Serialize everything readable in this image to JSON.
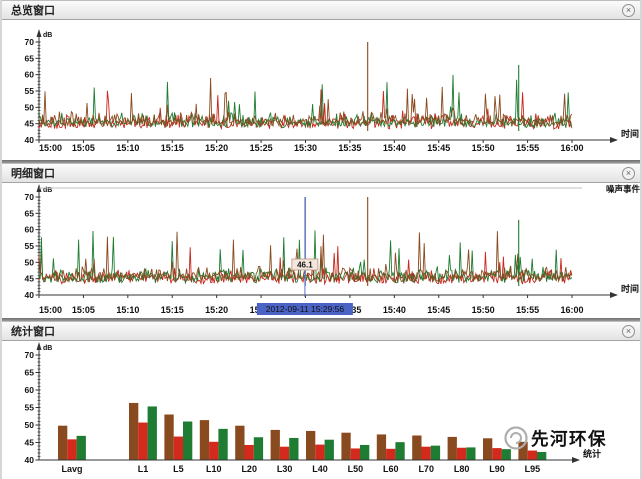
{
  "ui": {
    "close_glyph": "×",
    "watermark": {
      "text": "先河环保",
      "color": "#9b9b9b"
    },
    "accent_colors": {
      "series_red": "#c8281e",
      "series_green": "#1f7c31",
      "series_brown": "#8a4a1f",
      "cursor_blue": "#4a63c4"
    }
  },
  "panels": {
    "overview": {
      "title": "总览窗口"
    },
    "detail": {
      "title": "明细窗口"
    },
    "statistics": {
      "title": "统计窗口"
    }
  },
  "chart_data": [
    {
      "type": "line",
      "panel": "overview",
      "title": "总览窗口",
      "xlabel": "时间",
      "ylabel": "dB",
      "x_ticks": [
        "15:00",
        "15:05",
        "15:10",
        "15:15",
        "15:20",
        "15:25",
        "15:30",
        "15:35",
        "15:40",
        "15:45",
        "15:50",
        "15:55",
        "16:00"
      ],
      "ylim": [
        40,
        70
      ],
      "y_ticks": [
        70,
        65,
        60,
        55,
        50,
        45,
        40
      ],
      "grid": false,
      "legend": "none",
      "series": [
        {
          "name": "instant-red",
          "color": "#c8281e",
          "typical_range_db": [
            43,
            52
          ]
        },
        {
          "name": "instant-green",
          "color": "#1f7c31",
          "typical_range_db": [
            43,
            58
          ]
        },
        {
          "name": "instant-brown",
          "color": "#8a4a1f",
          "typical_range_db": [
            44,
            60
          ]
        }
      ],
      "notable_events": [
        {
          "series": "instant-brown",
          "time": "15:37",
          "peak_db": 70
        },
        {
          "series": "instant-green",
          "time": "15:54",
          "peak_db": 63
        }
      ]
    },
    {
      "type": "line",
      "panel": "detail",
      "title": "明细窗口",
      "xlabel": "时间",
      "ylabel": "dB",
      "event_track_label": "噪声事件",
      "x_ticks": [
        "15:00",
        "15:05",
        "15:10",
        "15:15",
        "15:20",
        "15:25",
        "15:30",
        "15:35",
        "15:40",
        "15:45",
        "15:50",
        "15:55",
        "16:00"
      ],
      "ylim": [
        40,
        70
      ],
      "y_ticks": [
        70,
        65,
        60,
        55,
        50,
        45,
        40
      ],
      "grid": false,
      "legend": "none",
      "series": [
        {
          "name": "instant-red",
          "color": "#c8281e",
          "typical_range_db": [
            43,
            52
          ]
        },
        {
          "name": "instant-green",
          "color": "#1f7c31",
          "typical_range_db": [
            43,
            58
          ]
        },
        {
          "name": "instant-brown",
          "color": "#8a4a1f",
          "typical_range_db": [
            44,
            60
          ]
        }
      ],
      "notable_events": [
        {
          "series": "cursor-gray",
          "time": "15:30",
          "peak_db": 70
        },
        {
          "series": "instant-brown",
          "time": "15:37",
          "peak_db": 70
        },
        {
          "series": "instant-green",
          "time": "15:54",
          "peak_db": 63
        }
      ],
      "cursor": {
        "time": "15:29:56",
        "value_db": "46.1",
        "timestamp_label": "2012-09-11 15:29:56"
      }
    },
    {
      "type": "bar",
      "panel": "statistics",
      "title": "统计窗口",
      "xlabel": "统计",
      "ylabel": "dB",
      "ylim": [
        40,
        70
      ],
      "y_ticks": [
        70,
        65,
        60,
        55,
        50,
        45,
        40
      ],
      "grid": false,
      "legend": "none",
      "categories": [
        "Lavg",
        "L1",
        "L5",
        "L10",
        "L20",
        "L30",
        "L40",
        "L50",
        "L60",
        "L70",
        "L80",
        "L90",
        "L95"
      ],
      "series": [
        {
          "name": "brown",
          "color": "#8a4a1f",
          "values": [
            49.8,
            56.3,
            53.0,
            51.4,
            49.8,
            48.6,
            48.3,
            47.8,
            47.3,
            47.0,
            46.6,
            46.2,
            45.2
          ]
        },
        {
          "name": "red",
          "color": "#d42a1e",
          "values": [
            45.9,
            50.7,
            46.7,
            45.2,
            44.3,
            43.8,
            44.4,
            43.3,
            43.2,
            43.8,
            43.5,
            43.4,
            42.7
          ]
        },
        {
          "name": "green",
          "color": "#1e7d32",
          "values": [
            46.9,
            55.3,
            51.0,
            48.9,
            46.5,
            46.3,
            45.8,
            44.3,
            45.1,
            44.1,
            43.6,
            43.1,
            42.3
          ]
        }
      ]
    }
  ]
}
